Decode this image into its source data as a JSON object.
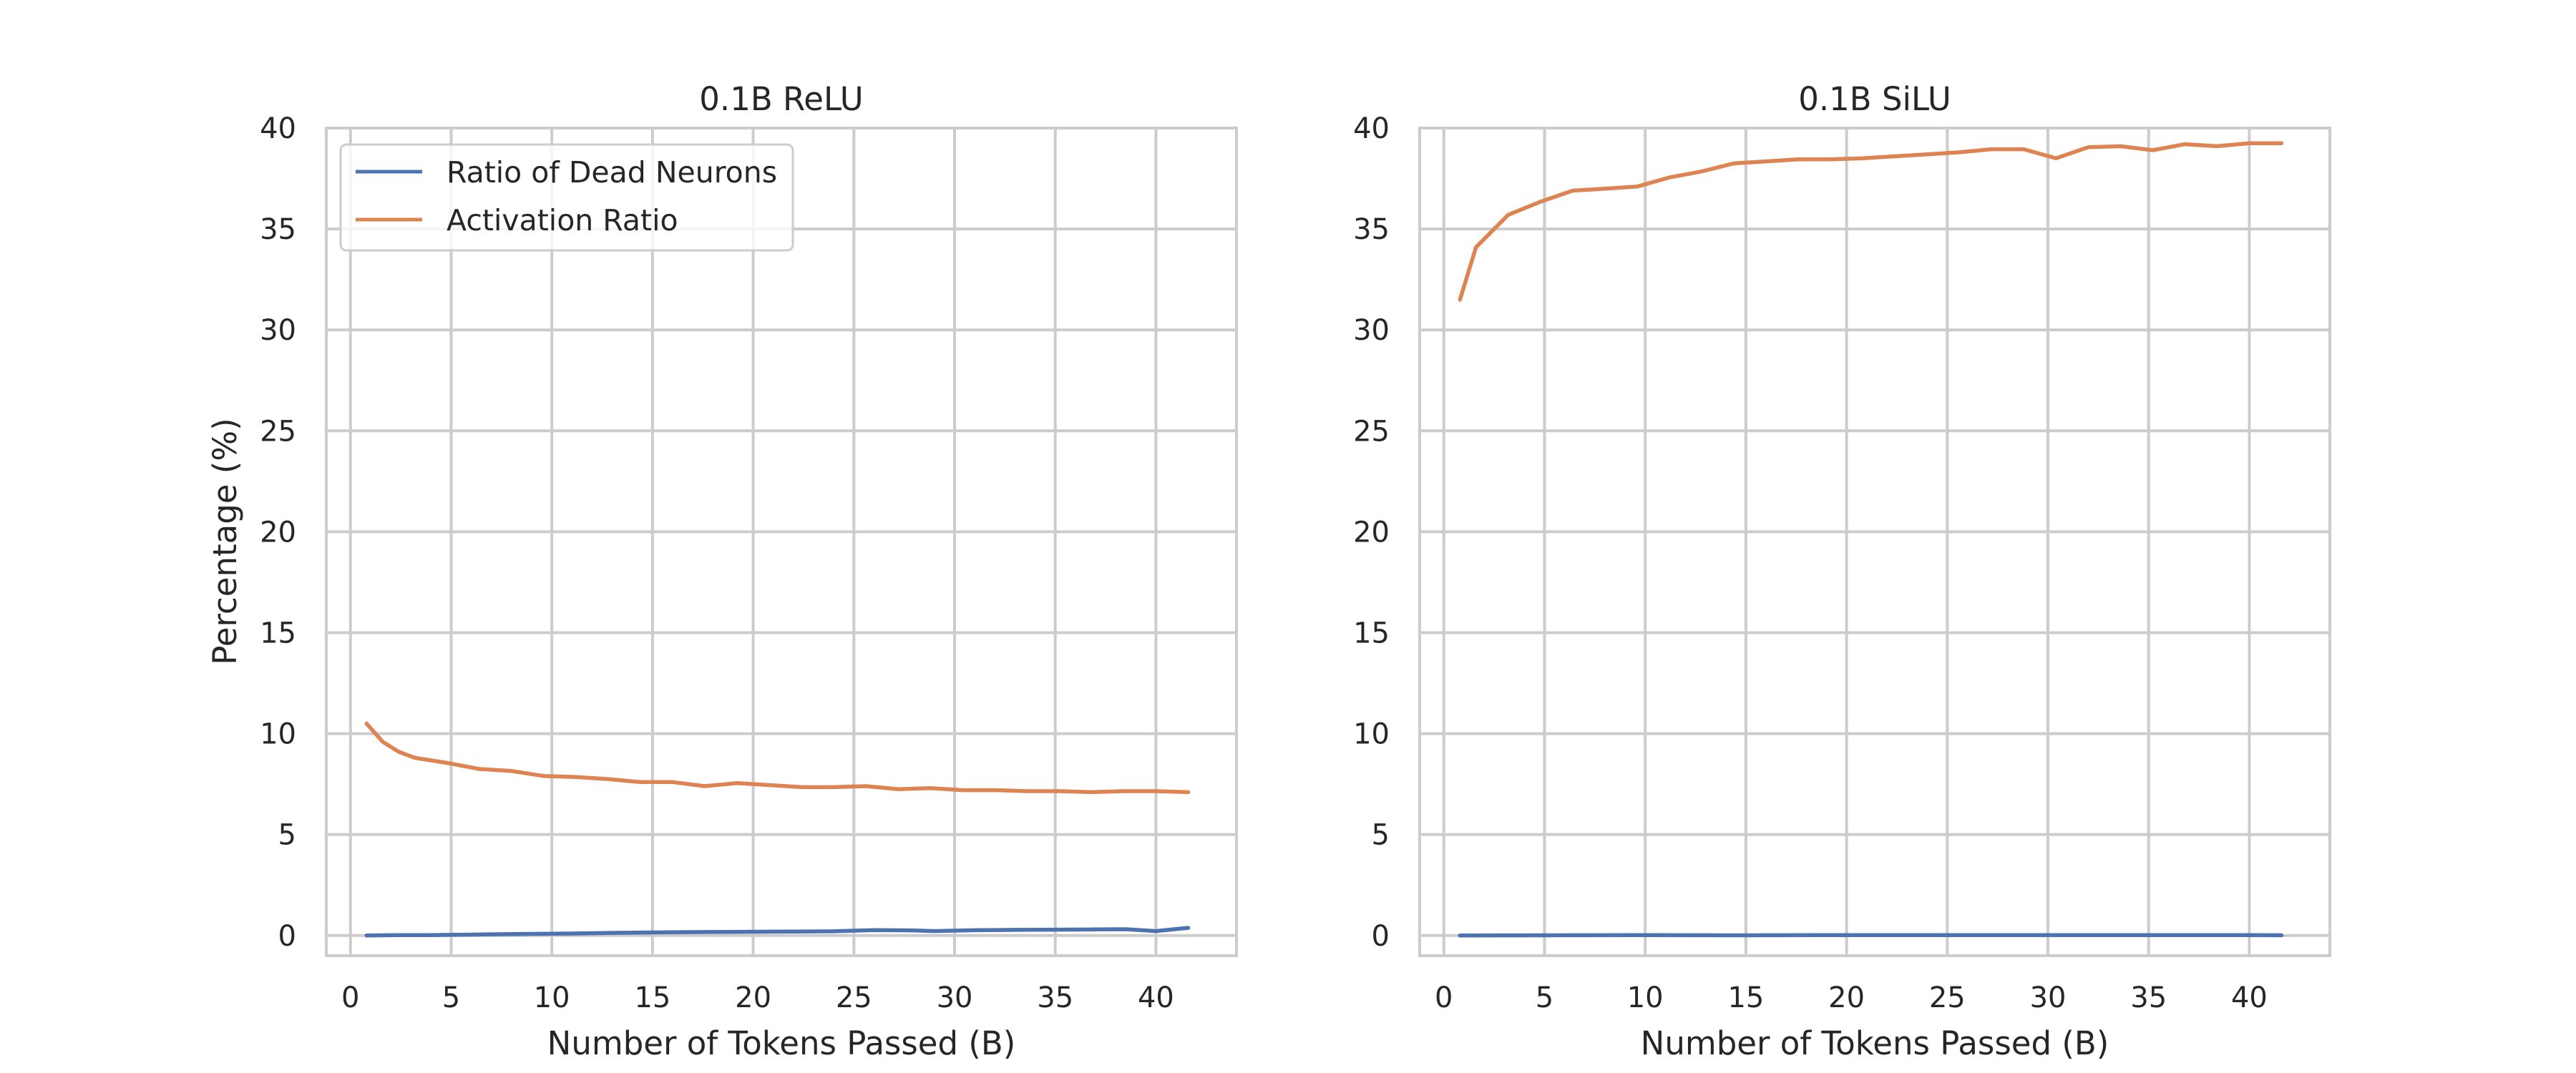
{
  "colors": {
    "series_blue": "#4c72b0",
    "series_orange": "#dd8452",
    "grid": "#cccccc",
    "spine": "#cccccc",
    "text": "#262626"
  },
  "chart_data": [
    {
      "type": "line",
      "title": "0.1B ReLU",
      "xlabel": "Number of Tokens Passed (B)",
      "ylabel": "Percentage (%)",
      "xlim": [
        -1.2,
        44
      ],
      "ylim": [
        -1,
        40
      ],
      "xticks": [
        0,
        5,
        10,
        15,
        20,
        25,
        30,
        35,
        40
      ],
      "yticks": [
        0,
        5,
        10,
        15,
        20,
        25,
        30,
        35,
        40
      ],
      "grid": true,
      "legend": {
        "placement": "upper left",
        "entries": [
          "Ratio of Dead Neurons",
          "Activation Ratio"
        ]
      },
      "series": [
        {
          "name": "Ratio of Dead Neurons",
          "color": "#4c72b0",
          "x": [
            0.8,
            2.4,
            4,
            5.5,
            7,
            9,
            11,
            13,
            15,
            17,
            19,
            21,
            23,
            24,
            26,
            28,
            29,
            31,
            33,
            35,
            37,
            38.5,
            40,
            41.6
          ],
          "y": [
            0.0,
            0.02,
            0.02,
            0.04,
            0.06,
            0.08,
            0.1,
            0.13,
            0.15,
            0.17,
            0.18,
            0.19,
            0.2,
            0.21,
            0.27,
            0.25,
            0.22,
            0.26,
            0.28,
            0.29,
            0.3,
            0.31,
            0.22,
            0.38
          ]
        },
        {
          "name": "Activation Ratio",
          "color": "#dd8452",
          "x": [
            0.8,
            1.6,
            2.4,
            3.2,
            4.8,
            6.4,
            8,
            9.6,
            11.2,
            12.8,
            14.4,
            16,
            17.6,
            19.2,
            20.8,
            22.4,
            24,
            25.6,
            27.2,
            28.8,
            30.4,
            32,
            33.6,
            35.2,
            36.8,
            38.4,
            40,
            41.6
          ],
          "y": [
            10.5,
            9.6,
            9.1,
            8.8,
            8.55,
            8.25,
            8.15,
            7.9,
            7.85,
            7.75,
            7.6,
            7.6,
            7.4,
            7.55,
            7.45,
            7.35,
            7.35,
            7.4,
            7.25,
            7.3,
            7.2,
            7.2,
            7.15,
            7.15,
            7.1,
            7.15,
            7.15,
            7.1
          ]
        }
      ]
    },
    {
      "type": "line",
      "title": "0.1B SiLU",
      "xlabel": "Number of Tokens Passed (B)",
      "ylabel": "",
      "xlim": [
        -1.2,
        44
      ],
      "ylim": [
        -1,
        40
      ],
      "xticks": [
        0,
        5,
        10,
        15,
        20,
        25,
        30,
        35,
        40
      ],
      "yticks": [
        0,
        5,
        10,
        15,
        20,
        25,
        30,
        35,
        40
      ],
      "grid": true,
      "series": [
        {
          "name": "Ratio of Dead Neurons",
          "color": "#4c72b0",
          "x": [
            0.8,
            5,
            10,
            15,
            20,
            25,
            30,
            35,
            40,
            41.6
          ],
          "y": [
            0.0,
            0.01,
            0.02,
            0.01,
            0.02,
            0.02,
            0.02,
            0.02,
            0.02,
            0.01
          ]
        },
        {
          "name": "Activation Ratio",
          "color": "#dd8452",
          "x": [
            0.8,
            1.6,
            3.2,
            4.8,
            6.4,
            8,
            9.6,
            11.2,
            12.8,
            14.4,
            16,
            17.6,
            19.2,
            20.8,
            22.4,
            24,
            25.6,
            27.2,
            28.8,
            30.4,
            32,
            33.6,
            35.2,
            36.8,
            38.4,
            40,
            41.6
          ],
          "y": [
            31.5,
            34.1,
            35.7,
            36.35,
            36.9,
            37.0,
            37.1,
            37.55,
            37.85,
            38.25,
            38.35,
            38.45,
            38.45,
            38.5,
            38.6,
            38.7,
            38.8,
            38.95,
            38.95,
            38.5,
            39.05,
            39.1,
            38.9,
            39.2,
            39.1,
            39.25,
            39.25
          ]
        }
      ]
    }
  ]
}
